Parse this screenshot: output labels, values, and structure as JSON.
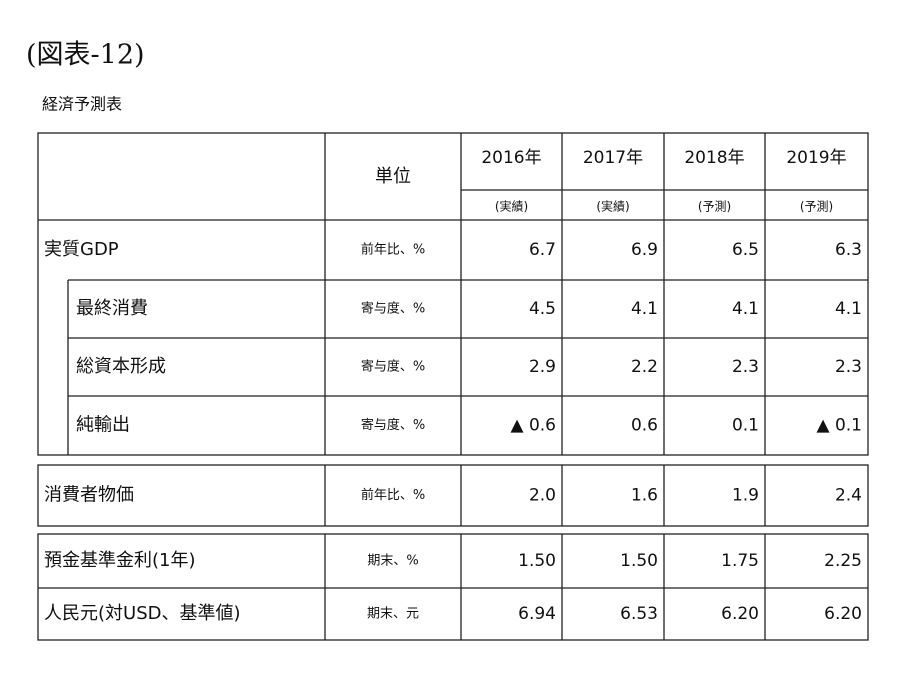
{
  "header": {
    "title": "(図表-12)",
    "subtitle": "経済予測表"
  },
  "table": {
    "unit_header": "単位",
    "years": [
      "2016年",
      "2017年",
      "2018年",
      "2019年"
    ],
    "year_notes": [
      "(実績)",
      "(実績)",
      "(予測)",
      "(予測)"
    ],
    "sections": [
      {
        "rows": [
          {
            "label": "実質GDP",
            "unit": "前年比、%",
            "values": [
              "6.7",
              "6.9",
              "6.5",
              "6.3"
            ]
          },
          {
            "label": "最終消費",
            "unit": "寄与度、%",
            "values": [
              "4.5",
              "4.1",
              "4.1",
              "4.1"
            ]
          },
          {
            "label": "総資本形成",
            "unit": "寄与度、%",
            "values": [
              "2.9",
              "2.2",
              "2.3",
              "2.3"
            ]
          },
          {
            "label": "純輸出",
            "unit": "寄与度、%",
            "values": [
              "▲ 0.6",
              "0.6",
              "0.1",
              "▲ 0.1"
            ]
          }
        ]
      },
      {
        "rows": [
          {
            "label": "消費者物価",
            "unit": "前年比、%",
            "values": [
              "2.0",
              "1.6",
              "1.9",
              "2.4"
            ]
          }
        ]
      },
      {
        "rows": [
          {
            "label": "預金基準金利(1年)",
            "unit": "期末、%",
            "values": [
              "1.50",
              "1.50",
              "1.75",
              "2.25"
            ]
          },
          {
            "label": "人民元(対USD、基準値)",
            "unit": "期末、元",
            "values": [
              "6.94",
              "6.53",
              "6.20",
              "6.20"
            ]
          }
        ]
      }
    ]
  }
}
